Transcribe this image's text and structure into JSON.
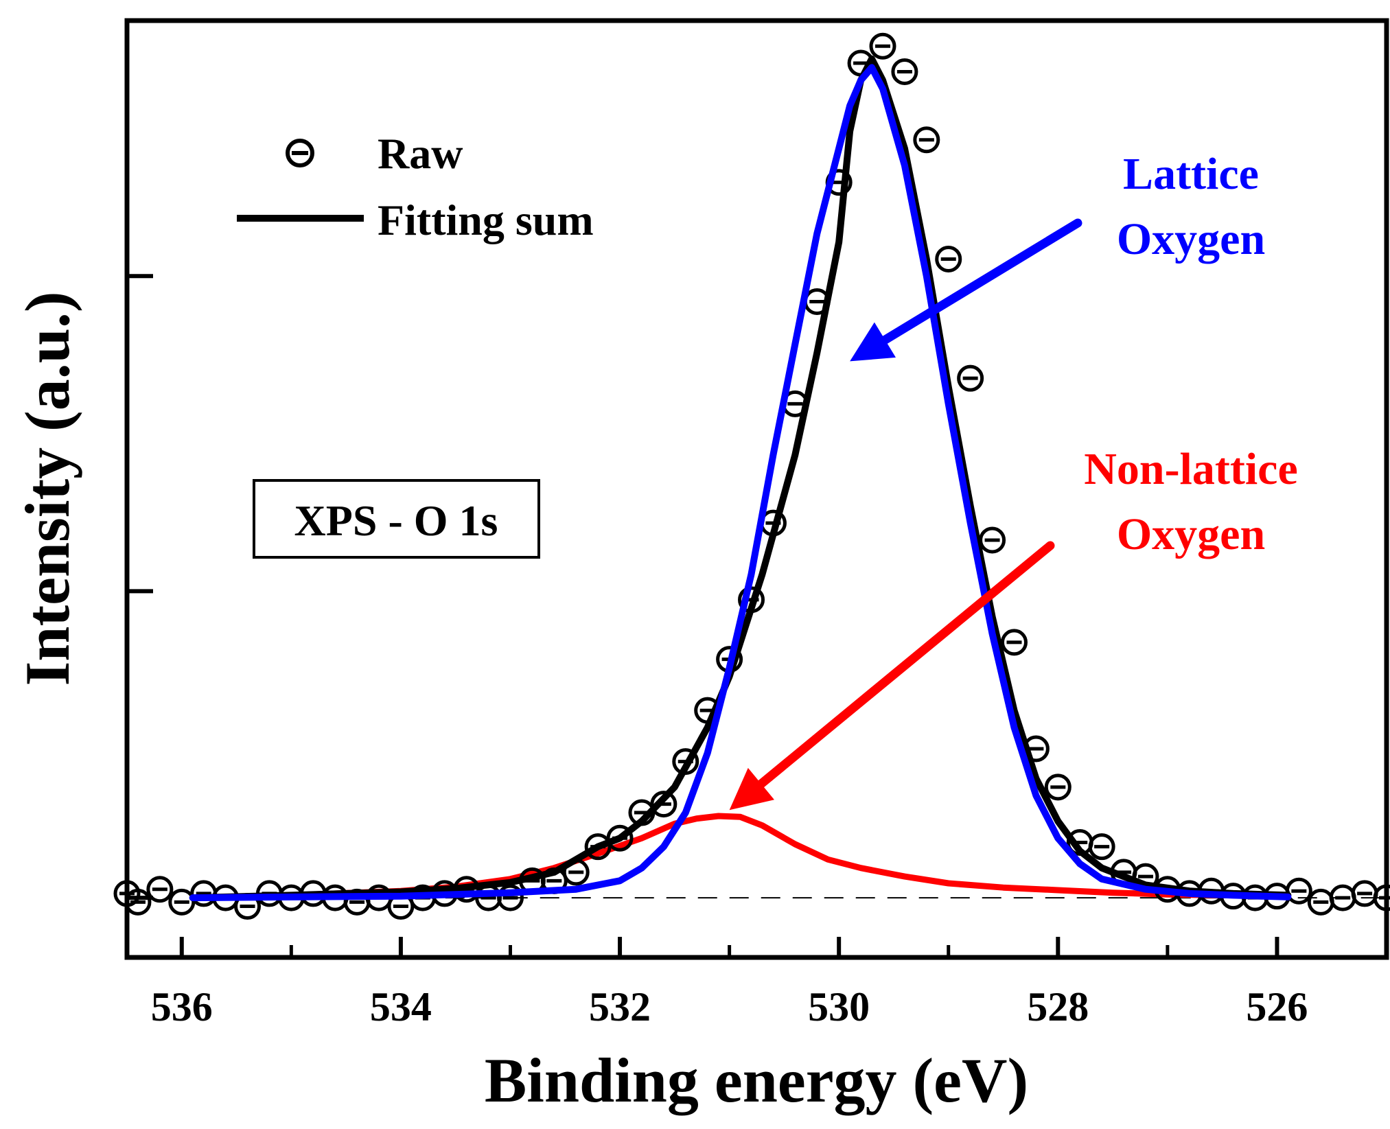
{
  "chart_data": {
    "type": "scatter",
    "title": "",
    "xlabel": "Binding energy (eV)",
    "ylabel": "Intensity (a.u.)",
    "xlim": [
      536.5,
      525.0
    ],
    "ylim": [
      -0.07,
      1.03
    ],
    "x_ticks": [
      536,
      534,
      532,
      530,
      528,
      526
    ],
    "x_tick_labels": [
      "536",
      "534",
      "532",
      "530",
      "528",
      "526"
    ],
    "x_minor_ticks": [
      535,
      533,
      531,
      529,
      527,
      525
    ],
    "y_ticks": [
      0.0,
      0.36,
      0.73
    ],
    "grid": false,
    "legend": {
      "position": "top-left",
      "entries": [
        {
          "label": "Raw",
          "marker": "circle-minus"
        },
        {
          "label": "Fitting sum",
          "marker": "line"
        }
      ]
    },
    "box_label": "XPS - O 1s",
    "baseline": 0.0,
    "series": [
      {
        "name": "Raw",
        "kind": "markers",
        "color": "#000000",
        "x": [
          536.5,
          536.4,
          536.2,
          536.0,
          535.8,
          535.6,
          535.4,
          535.2,
          535.0,
          534.8,
          534.6,
          534.4,
          534.2,
          534.0,
          533.8,
          533.6,
          533.4,
          533.2,
          533.0,
          532.8,
          532.6,
          532.4,
          532.2,
          532.0,
          531.8,
          531.6,
          531.4,
          531.2,
          531.0,
          530.8,
          530.6,
          530.4,
          530.2,
          530.0,
          529.8,
          529.6,
          529.4,
          529.2,
          529.0,
          528.8,
          528.6,
          528.4,
          528.2,
          528.0,
          527.8,
          527.6,
          527.4,
          527.2,
          527.0,
          526.8,
          526.6,
          526.4,
          526.2,
          526.0,
          525.8,
          525.6,
          525.4,
          525.2,
          525.0
        ],
        "y": [
          0.005,
          -0.005,
          0.01,
          -0.005,
          0.005,
          0.0,
          -0.01,
          0.005,
          0.0,
          0.005,
          0.0,
          -0.005,
          0.0,
          -0.01,
          0.0,
          0.005,
          0.01,
          0.0,
          0.0,
          0.02,
          0.02,
          0.03,
          0.06,
          0.07,
          0.1,
          0.11,
          0.16,
          0.22,
          0.28,
          0.35,
          0.44,
          0.58,
          0.7,
          0.84,
          0.98,
          1.0,
          0.97,
          0.89,
          0.75,
          0.61,
          0.42,
          0.3,
          0.175,
          0.13,
          0.065,
          0.06,
          0.03,
          0.025,
          0.01,
          0.005,
          0.008,
          0.002,
          0.0,
          0.002,
          0.008,
          -0.005,
          0.0,
          0.005,
          0.0
        ]
      },
      {
        "name": "Fitting sum",
        "kind": "line",
        "color": "#000000",
        "x": [
          535.9,
          535.0,
          534.0,
          533.5,
          533.0,
          532.6,
          532.2,
          532.0,
          531.8,
          531.5,
          531.2,
          531.0,
          530.7,
          530.4,
          530.2,
          530.0,
          529.9,
          529.8,
          529.7,
          529.6,
          529.4,
          529.2,
          529.0,
          528.8,
          528.6,
          528.4,
          528.2,
          528.0,
          527.8,
          527.6,
          527.2,
          526.8,
          526.4,
          525.9
        ],
        "y": [
          0.0,
          0.003,
          0.007,
          0.011,
          0.018,
          0.03,
          0.06,
          0.07,
          0.09,
          0.13,
          0.2,
          0.26,
          0.38,
          0.52,
          0.64,
          0.77,
          0.9,
          0.96,
          0.985,
          0.96,
          0.88,
          0.75,
          0.6,
          0.46,
          0.33,
          0.22,
          0.14,
          0.09,
          0.055,
          0.035,
          0.015,
          0.008,
          0.005,
          0.003
        ]
      },
      {
        "name": "Lattice Oxygen",
        "kind": "line",
        "color": "#0000ff",
        "x": [
          535.9,
          534.0,
          533.0,
          532.4,
          532.0,
          531.8,
          531.6,
          531.4,
          531.2,
          531.0,
          530.8,
          530.6,
          530.4,
          530.2,
          530.0,
          529.9,
          529.8,
          529.7,
          529.6,
          529.4,
          529.2,
          529.0,
          528.8,
          528.6,
          528.4,
          528.2,
          528.0,
          527.8,
          527.6,
          527.2,
          526.8,
          526.4,
          525.9
        ],
        "y": [
          0.0,
          0.002,
          0.006,
          0.01,
          0.02,
          0.035,
          0.06,
          0.1,
          0.17,
          0.27,
          0.38,
          0.52,
          0.65,
          0.78,
          0.88,
          0.93,
          0.96,
          0.975,
          0.95,
          0.86,
          0.73,
          0.58,
          0.44,
          0.31,
          0.2,
          0.12,
          0.07,
          0.04,
          0.022,
          0.01,
          0.005,
          0.003,
          0.001
        ]
      },
      {
        "name": "Non-lattice Oxygen",
        "kind": "line",
        "color": "#ff0000",
        "x": [
          535.9,
          535.0,
          534.0,
          533.5,
          533.0,
          532.6,
          532.2,
          531.8,
          531.5,
          531.3,
          531.1,
          530.9,
          530.7,
          530.4,
          530.1,
          529.8,
          529.4,
          529.0,
          528.5,
          528.0,
          527.5,
          527.0,
          526.5,
          525.9
        ],
        "y": [
          0.0,
          0.003,
          0.008,
          0.013,
          0.022,
          0.035,
          0.052,
          0.07,
          0.087,
          0.093,
          0.096,
          0.095,
          0.085,
          0.063,
          0.045,
          0.035,
          0.025,
          0.017,
          0.012,
          0.009,
          0.006,
          0.004,
          0.003,
          0.002
        ]
      }
    ],
    "annotations": [
      {
        "text_lines": [
          "Lattice",
          "Oxygen"
        ],
        "color": "#0000ff",
        "arrow_to": [
          529.9,
          0.63
        ]
      },
      {
        "text_lines": [
          "Non-lattice",
          "Oxygen"
        ],
        "color": "#ff0000",
        "arrow_to": [
          531.0,
          0.095
        ]
      }
    ]
  }
}
